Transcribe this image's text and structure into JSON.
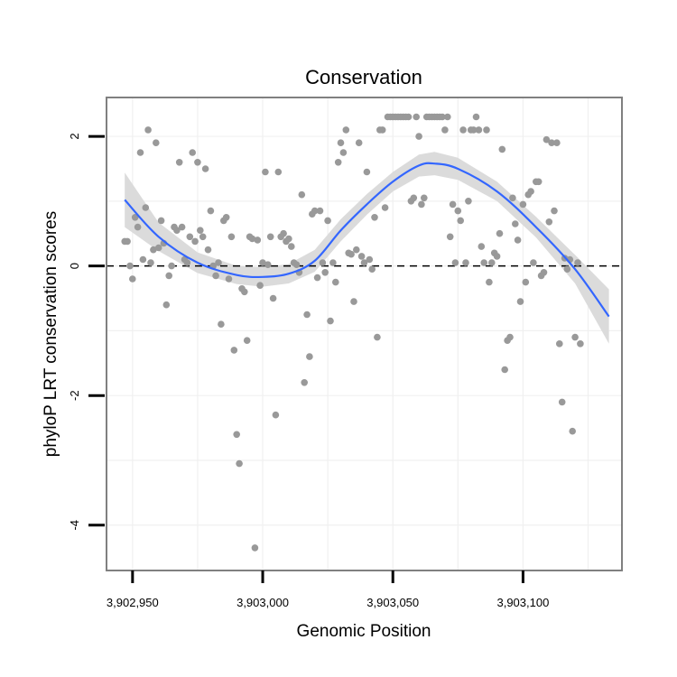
{
  "chart_data": {
    "type": "scatter",
    "title": "Conservation",
    "xlabel": "Genomic Position",
    "ylabel": "phyloP LRT conservation scores",
    "xlim": [
      3902940,
      3903138
    ],
    "ylim": [
      -4.7,
      2.6
    ],
    "x_ticks": [
      3902950,
      3903000,
      3903050,
      3903100
    ],
    "x_tick_labels": [
      "3,902,950",
      "3,903,000",
      "3,903,050",
      "3,903,100"
    ],
    "y_ticks": [
      2,
      0,
      -2,
      -4
    ],
    "y_tick_labels": [
      "2",
      "0",
      "-2",
      "-4"
    ],
    "reference_line_y": 0,
    "grid": true,
    "colors": {
      "points": "#999999",
      "smooth_line": "#3366ff",
      "confidence_band": "#d9d9d9",
      "reference_line": "#000000",
      "panel_border": "#808080",
      "grid": "#f0f0f0"
    },
    "points": [
      [
        3902947,
        0.38
      ],
      [
        3902948,
        0.38
      ],
      [
        3902949,
        0
      ],
      [
        3902950,
        -0.2
      ],
      [
        3902951,
        0.75
      ],
      [
        3902952,
        0.6
      ],
      [
        3902953,
        1.75
      ],
      [
        3902954,
        0.1
      ],
      [
        3902955,
        0.9
      ],
      [
        3902956,
        2.1
      ],
      [
        3902957,
        0.05
      ],
      [
        3902958,
        0.25
      ],
      [
        3902959,
        1.9
      ],
      [
        3902960,
        0.28
      ],
      [
        3902961,
        0.7
      ],
      [
        3902962,
        0.35
      ],
      [
        3902963,
        -0.6
      ],
      [
        3902964,
        -0.15
      ],
      [
        3902965,
        0
      ],
      [
        3902966,
        0.6
      ],
      [
        3902967,
        0.55
      ],
      [
        3902968,
        1.6
      ],
      [
        3902969,
        0.6
      ],
      [
        3902970,
        0.1
      ],
      [
        3902971,
        0.05
      ],
      [
        3902972,
        0.45
      ],
      [
        3902973,
        1.75
      ],
      [
        3902974,
        0.38
      ],
      [
        3902975,
        1.6
      ],
      [
        3902976,
        0.55
      ],
      [
        3902977,
        0.45
      ],
      [
        3902978,
        1.5
      ],
      [
        3902979,
        0.25
      ],
      [
        3902980,
        0.85
      ],
      [
        3902981,
        0
      ],
      [
        3902982,
        -0.15
      ],
      [
        3902983,
        0.05
      ],
      [
        3902984,
        -0.9
      ],
      [
        3902985,
        0.7
      ],
      [
        3902986,
        0.75
      ],
      [
        3902987,
        -0.2
      ],
      [
        3902988,
        0.45
      ],
      [
        3902989,
        -1.3
      ],
      [
        3902990,
        -2.6
      ],
      [
        3902991,
        -3.05
      ],
      [
        3902992,
        -0.35
      ],
      [
        3902993,
        -0.4
      ],
      [
        3902994,
        -1.15
      ],
      [
        3902995,
        0.45
      ],
      [
        3902996,
        0.42
      ],
      [
        3902997,
        -4.35
      ],
      [
        3902998,
        0.4
      ],
      [
        3902999,
        -0.3
      ],
      [
        3903000,
        0.05
      ],
      [
        3903001,
        1.45
      ],
      [
        3903002,
        0.02
      ],
      [
        3903003,
        0.45
      ],
      [
        3903004,
        -0.5
      ],
      [
        3903005,
        -2.3
      ],
      [
        3903006,
        1.45
      ],
      [
        3903007,
        0.45
      ],
      [
        3903008,
        0.5
      ],
      [
        3903009,
        0.38
      ],
      [
        3903010,
        0.42
      ],
      [
        3903011,
        0.3
      ],
      [
        3903012,
        0.05
      ],
      [
        3903013,
        0.02
      ],
      [
        3903014,
        -0.1
      ],
      [
        3903015,
        1.1
      ],
      [
        3903016,
        -1.8
      ],
      [
        3903017,
        -0.75
      ],
      [
        3903018,
        -1.4
      ],
      [
        3903019,
        0.8
      ],
      [
        3903020,
        0.85
      ],
      [
        3903021,
        -0.18
      ],
      [
        3903022,
        0.85
      ],
      [
        3903023,
        0.05
      ],
      [
        3903024,
        -0.1
      ],
      [
        3903025,
        0.7
      ],
      [
        3903026,
        -0.85
      ],
      [
        3903027,
        0.05
      ],
      [
        3903028,
        -0.25
      ],
      [
        3903029,
        1.6
      ],
      [
        3903030,
        1.9
      ],
      [
        3903031,
        1.75
      ],
      [
        3903032,
        2.1
      ],
      [
        3903033,
        0.2
      ],
      [
        3903034,
        0.18
      ],
      [
        3903035,
        -0.55
      ],
      [
        3903036,
        0.25
      ],
      [
        3903037,
        1.9
      ],
      [
        3903038,
        0.15
      ],
      [
        3903039,
        0.05
      ],
      [
        3903040,
        1.45
      ],
      [
        3903041,
        0.1
      ],
      [
        3903042,
        -0.05
      ],
      [
        3903043,
        0.75
      ],
      [
        3903044,
        -1.1
      ],
      [
        3903045,
        2.1
      ],
      [
        3903046,
        2.1
      ],
      [
        3903047,
        0.9
      ],
      [
        3903048,
        2.3
      ],
      [
        3903049,
        2.3
      ],
      [
        3903050,
        2.3
      ],
      [
        3903051,
        2.3
      ],
      [
        3903052,
        2.3
      ],
      [
        3903053,
        2.3
      ],
      [
        3903054,
        2.3
      ],
      [
        3903055,
        2.3
      ],
      [
        3903056,
        2.3
      ],
      [
        3903057,
        1.0
      ],
      [
        3903058,
        1.05
      ],
      [
        3903059,
        2.3
      ],
      [
        3903060,
        2.0
      ],
      [
        3903061,
        0.95
      ],
      [
        3903062,
        1.05
      ],
      [
        3903063,
        2.3
      ],
      [
        3903064,
        2.3
      ],
      [
        3903065,
        2.3
      ],
      [
        3903066,
        2.3
      ],
      [
        3903067,
        2.3
      ],
      [
        3903068,
        2.3
      ],
      [
        3903069,
        2.3
      ],
      [
        3903070,
        2.1
      ],
      [
        3903071,
        2.3
      ],
      [
        3903072,
        0.45
      ],
      [
        3903073,
        0.95
      ],
      [
        3903074,
        0.05
      ],
      [
        3903075,
        0.85
      ],
      [
        3903076,
        0.7
      ],
      [
        3903077,
        2.1
      ],
      [
        3903078,
        0.05
      ],
      [
        3903079,
        1.0
      ],
      [
        3903080,
        2.1
      ],
      [
        3903081,
        2.1
      ],
      [
        3903082,
        2.3
      ],
      [
        3903083,
        2.1
      ],
      [
        3903084,
        0.3
      ],
      [
        3903085,
        0.05
      ],
      [
        3903086,
        2.1
      ],
      [
        3903087,
        -0.25
      ],
      [
        3903088,
        0.05
      ],
      [
        3903089,
        0.2
      ],
      [
        3903090,
        0.15
      ],
      [
        3903091,
        0.5
      ],
      [
        3903092,
        1.8
      ],
      [
        3903093,
        -1.6
      ],
      [
        3903094,
        -1.15
      ],
      [
        3903095,
        -1.1
      ],
      [
        3903096,
        1.05
      ],
      [
        3903097,
        0.65
      ],
      [
        3903098,
        0.4
      ],
      [
        3903099,
        -0.55
      ],
      [
        3903100,
        0.95
      ],
      [
        3903101,
        -0.25
      ],
      [
        3903102,
        1.1
      ],
      [
        3903103,
        1.15
      ],
      [
        3903104,
        0.05
      ],
      [
        3903105,
        1.3
      ],
      [
        3903106,
        1.3
      ],
      [
        3903107,
        -0.15
      ],
      [
        3903108,
        -0.1
      ],
      [
        3903109,
        1.95
      ],
      [
        3903110,
        0.68
      ],
      [
        3903111,
        1.9
      ],
      [
        3903112,
        0.85
      ],
      [
        3903113,
        1.9
      ],
      [
        3903114,
        -1.2
      ],
      [
        3903115,
        -2.1
      ],
      [
        3903116,
        0.12
      ],
      [
        3903117,
        -0.05
      ],
      [
        3903118,
        0.1
      ],
      [
        3903119,
        -2.55
      ],
      [
        3903120,
        -1.1
      ],
      [
        3903121,
        0.05
      ],
      [
        3903122,
        -1.2
      ]
    ],
    "smooth": {
      "x": [
        3902947,
        3902960,
        3902975,
        3902990,
        3903000,
        3903010,
        3903020,
        3903030,
        3903040,
        3903050,
        3903060,
        3903066,
        3903075,
        3903090,
        3903105,
        3903120,
        3903133
      ],
      "y": [
        1.02,
        0.45,
        0.05,
        -0.14,
        -0.17,
        -0.12,
        0.08,
        0.55,
        0.95,
        1.3,
        1.55,
        1.58,
        1.5,
        1.15,
        0.6,
        -0.05,
        -0.78
      ],
      "se": [
        0.42,
        0.22,
        0.16,
        0.14,
        0.15,
        0.15,
        0.17,
        0.17,
        0.16,
        0.15,
        0.17,
        0.18,
        0.17,
        0.15,
        0.16,
        0.22,
        0.42
      ]
    }
  }
}
